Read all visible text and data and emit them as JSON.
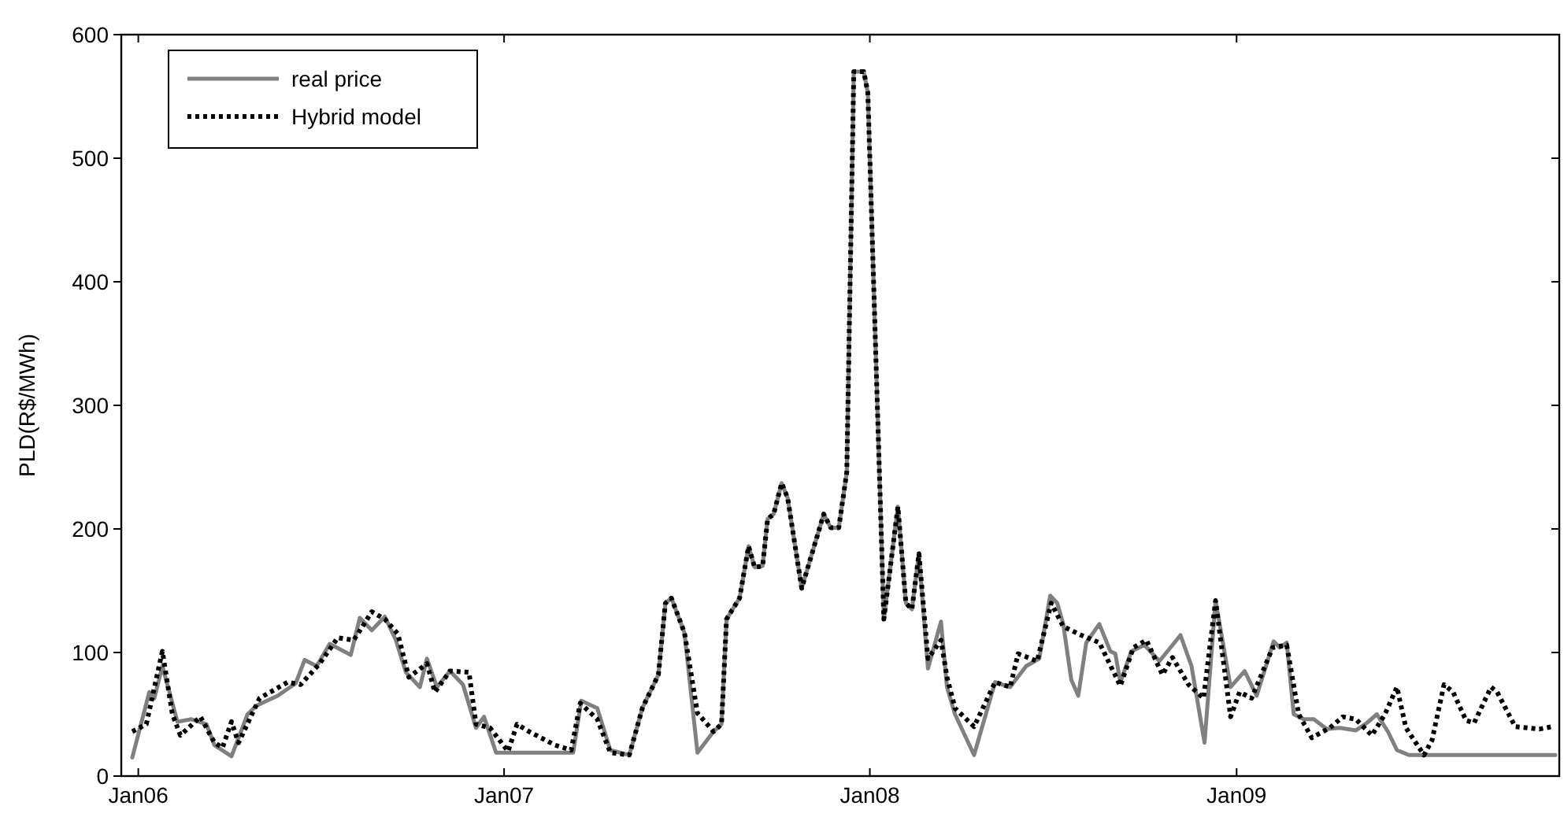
{
  "chart_data": {
    "type": "line",
    "ylabel": "PLD(R$/MWh)",
    "xlim": [
      "2005-12-15",
      "2009-11-19"
    ],
    "ylim": [
      0,
      600
    ],
    "yticks": [
      0,
      100,
      200,
      300,
      400,
      500,
      600
    ],
    "xticks": [
      {
        "value": "2006-01-01",
        "label": "Jan06"
      },
      {
        "value": "2007-01-01",
        "label": "Jan07"
      },
      {
        "value": "2008-01-01",
        "label": "Jan08"
      },
      {
        "value": "2009-01-01",
        "label": "Jan09"
      }
    ],
    "grid": false,
    "legend": "top left",
    "series": [
      {
        "name": "real price",
        "color": "#808080",
        "line_style": "solid",
        "x": [
          "2005-12-26",
          "2006-01-12",
          "2006-01-17",
          "2006-01-25",
          "2006-02-09",
          "2006-02-23",
          "2006-03-10",
          "2006-03-18",
          "2006-04-04",
          "2006-04-20",
          "2006-04-29",
          "2006-05-20",
          "2006-06-07",
          "2006-06-16",
          "2006-06-28",
          "2006-07-11",
          "2006-08-01",
          "2006-08-10",
          "2006-08-22",
          "2006-09-04",
          "2006-09-15",
          "2006-09-25",
          "2006-10-09",
          "2006-10-16",
          "2006-10-26",
          "2006-11-08",
          "2006-11-21",
          "2006-12-04",
          "2006-12-12",
          "2006-12-24",
          "2007-03-11",
          "2007-03-19",
          "2007-04-04",
          "2007-04-17",
          "2007-05-06",
          "2007-05-19",
          "2007-06-04",
          "2007-06-11",
          "2007-06-17",
          "2007-06-30",
          "2007-07-13",
          "2007-07-29",
          "2007-08-06",
          "2007-08-11",
          "2007-08-24",
          "2007-09-02",
          "2007-09-08",
          "2007-09-16",
          "2007-09-21",
          "2007-09-27",
          "2007-10-05",
          "2007-10-11",
          "2007-10-25",
          "2007-11-16",
          "2007-11-23",
          "2007-12-01",
          "2007-12-09",
          "2007-12-16",
          "2007-12-26",
          "2007-12-30",
          "2008-01-15",
          "2008-01-29",
          "2008-02-06",
          "2008-02-12",
          "2008-02-19",
          "2008-02-28",
          "2008-03-12",
          "2008-03-18",
          "2008-03-26",
          "2008-04-14",
          "2008-05-05",
          "2008-05-20",
          "2008-06-05",
          "2008-06-18",
          "2008-06-29",
          "2008-07-06",
          "2008-07-12",
          "2008-07-20",
          "2008-07-27",
          "2008-08-04",
          "2008-08-17",
          "2008-08-28",
          "2008-09-02",
          "2008-09-07",
          "2008-09-18",
          "2008-10-01",
          "2008-10-16",
          "2008-11-06",
          "2008-11-17",
          "2008-11-30",
          "2008-12-11",
          "2008-12-26",
          "2009-01-09",
          "2009-01-21",
          "2009-02-07",
          "2009-02-13",
          "2009-02-20",
          "2009-02-27",
          "2009-03-09",
          "2009-03-19",
          "2009-04-01",
          "2009-04-14",
          "2009-04-30",
          "2009-05-11",
          "2009-05-21",
          "2009-06-01",
          "2009-06-10",
          "2009-06-22",
          "2009-11-15"
        ],
        "values": [
          15,
          68,
          63,
          89,
          44,
          46,
          42,
          25,
          16,
          50,
          57,
          65,
          75,
          94,
          89,
          107,
          98,
          128,
          118,
          129,
          110,
          84,
          72,
          95,
          72,
          85,
          74,
          39,
          48,
          19,
          19,
          61,
          55,
          21,
          17,
          55,
          82,
          140,
          144,
          116,
          19,
          36,
          42,
          127,
          144,
          186,
          169,
          170,
          208,
          212,
          237,
          225,
          152,
          212,
          201,
          201,
          246,
          570,
          570,
          553,
          127,
          218,
          140,
          135,
          180,
          87,
          125,
          72,
          50,
          17,
          76,
          72,
          89,
          95,
          146,
          140,
          123,
          78,
          65,
          108,
          123,
          101,
          99,
          76,
          101,
          106,
          93,
          114,
          89,
          27,
          142,
          72,
          85,
          65,
          109,
          104,
          108,
          50,
          46,
          46,
          38,
          39,
          37,
          43,
          50,
          36,
          21,
          17,
          17
        ]
      },
      {
        "name": "Hybrid model",
        "color": "#000000",
        "line_style": "dotted",
        "x": [
          "2005-12-26",
          "2006-01-09",
          "2006-01-25",
          "2006-02-04",
          "2006-02-12",
          "2006-02-20",
          "2006-03-04",
          "2006-03-18",
          "2006-03-26",
          "2006-04-04",
          "2006-04-11",
          "2006-05-02",
          "2006-05-30",
          "2006-06-12",
          "2006-07-01",
          "2006-07-19",
          "2006-08-04",
          "2006-08-22",
          "2006-09-04",
          "2006-09-17",
          "2006-09-28",
          "2006-10-16",
          "2006-10-24",
          "2006-11-08",
          "2006-11-27",
          "2006-12-04",
          "2006-12-18",
          "2007-01-05",
          "2007-01-14",
          "2007-01-26",
          "2007-02-21",
          "2007-03-09",
          "2007-03-18",
          "2007-04-04",
          "2007-04-17",
          "2007-05-06",
          "2007-05-19",
          "2007-06-04",
          "2007-06-11",
          "2007-06-17",
          "2007-06-30",
          "2007-07-13",
          "2007-07-29",
          "2007-08-06",
          "2007-08-11",
          "2007-08-24",
          "2007-09-02",
          "2007-09-08",
          "2007-09-16",
          "2007-09-21",
          "2007-09-27",
          "2007-10-05",
          "2007-10-11",
          "2007-10-25",
          "2007-11-16",
          "2007-11-23",
          "2007-12-01",
          "2007-12-09",
          "2007-12-16",
          "2007-12-26",
          "2007-12-30",
          "2008-01-15",
          "2008-01-29",
          "2008-02-06",
          "2008-02-12",
          "2008-02-19",
          "2008-02-28",
          "2008-03-12",
          "2008-03-18",
          "2008-03-26",
          "2008-04-14",
          "2008-05-05",
          "2008-05-20",
          "2008-05-28",
          "2008-06-16",
          "2008-06-30",
          "2008-07-12",
          "2008-07-30",
          "2008-08-17",
          "2008-09-07",
          "2008-09-20",
          "2008-10-03",
          "2008-10-19",
          "2008-10-29",
          "2008-11-14",
          "2008-11-29",
          "2008-12-11",
          "2008-12-26",
          "2009-01-04",
          "2009-01-16",
          "2009-02-06",
          "2009-02-20",
          "2009-03-04",
          "2009-03-17",
          "2009-04-04",
          "2009-04-17",
          "2009-04-30",
          "2009-05-16",
          "2009-05-29",
          "2009-06-10",
          "2009-06-19",
          "2009-07-07",
          "2009-07-15",
          "2009-07-27",
          "2009-08-05",
          "2009-08-18",
          "2009-08-26",
          "2009-09-12",
          "2009-09-18",
          "2009-10-06",
          "2009-10-30",
          "2009-11-12"
        ],
        "values": [
          36,
          42,
          101,
          50,
          33,
          39,
          48,
          27,
          23,
          44,
          27,
          63,
          76,
          74,
          91,
          112,
          110,
          133,
          127,
          115,
          80,
          91,
          68,
          85,
          84,
          42,
          39,
          20,
          42,
          36,
          25,
          21,
          59,
          46,
          19,
          17,
          55,
          82,
          140,
          144,
          116,
          51,
          36,
          42,
          127,
          144,
          186,
          169,
          170,
          208,
          212,
          237,
          225,
          152,
          212,
          201,
          201,
          246,
          570,
          570,
          553,
          127,
          218,
          140,
          135,
          180,
          95,
          110,
          80,
          55,
          40,
          76,
          72,
          99,
          93,
          140,
          121,
          114,
          108,
          73,
          104,
          110,
          82,
          96,
          74,
          63,
          142,
          48,
          68,
          63,
          104,
          106,
          50,
          31,
          39,
          48,
          46,
          33,
          50,
          72,
          39,
          17,
          29,
          74,
          68,
          45,
          43,
          72,
          68,
          40,
          38,
          40
        ]
      }
    ]
  }
}
